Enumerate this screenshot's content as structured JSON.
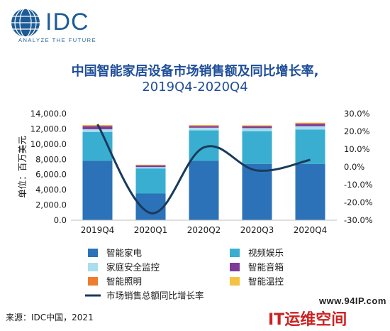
{
  "logo": {
    "name": "IDC",
    "tagline": "ANALYZE THE FUTURE"
  },
  "chart_data": {
    "type": "bar",
    "title": "中国智能家居设备市场销售额及同比增长率,",
    "subtitle": "2019Q4-2020Q4",
    "ylabel": "单位：百万美元",
    "categories": [
      "2019Q4",
      "2020Q1",
      "2020Q2",
      "2020Q3",
      "2020Q4"
    ],
    "ylim": [
      0,
      14000
    ],
    "yticks": [
      "14,000.0",
      "12,000.0",
      "10,000.0",
      "8,000.0",
      "6,000.0",
      "4,000.0",
      "2,000.0",
      "0.0"
    ],
    "y2lim": [
      -30,
      30
    ],
    "y2ticks": [
      "30.0%",
      "20.0%",
      "10.0%",
      "0.0%",
      "-10.0%",
      "-20.0%",
      "-30.0%"
    ],
    "series": [
      {
        "name": "智能家电",
        "type": "bar",
        "color": "#2b72b8",
        "values": [
          7800,
          3500,
          7800,
          7400,
          7400
        ]
      },
      {
        "name": "视频娱乐",
        "type": "bar",
        "color": "#3aaed0",
        "values": [
          3800,
          3300,
          4000,
          4300,
          4500
        ]
      },
      {
        "name": "家庭安全监控",
        "type": "bar",
        "color": "#a9ddf0",
        "values": [
          350,
          180,
          350,
          400,
          450
        ]
      },
      {
        "name": "智能音箱",
        "type": "bar",
        "color": "#7d3c98",
        "values": [
          400,
          220,
          200,
          230,
          300
        ]
      },
      {
        "name": "智能照明",
        "type": "bar",
        "color": "#ee7d31",
        "values": [
          100,
          60,
          100,
          90,
          100
        ]
      },
      {
        "name": "智能温控",
        "type": "bar",
        "color": "#f5c242",
        "values": [
          60,
          40,
          60,
          60,
          70
        ]
      },
      {
        "name": "市场销售总额同比增长率",
        "type": "line",
        "axis": "right",
        "color": "#1a3a5c",
        "values": [
          24.0,
          -26.0,
          11.0,
          -2.0,
          4.0
        ]
      }
    ],
    "legend_position": "bottom",
    "grid": false
  },
  "source": "来源：IDC中国，2021",
  "watermark": {
    "url": "www.94IP.com",
    "brand": "IT运维空间"
  }
}
